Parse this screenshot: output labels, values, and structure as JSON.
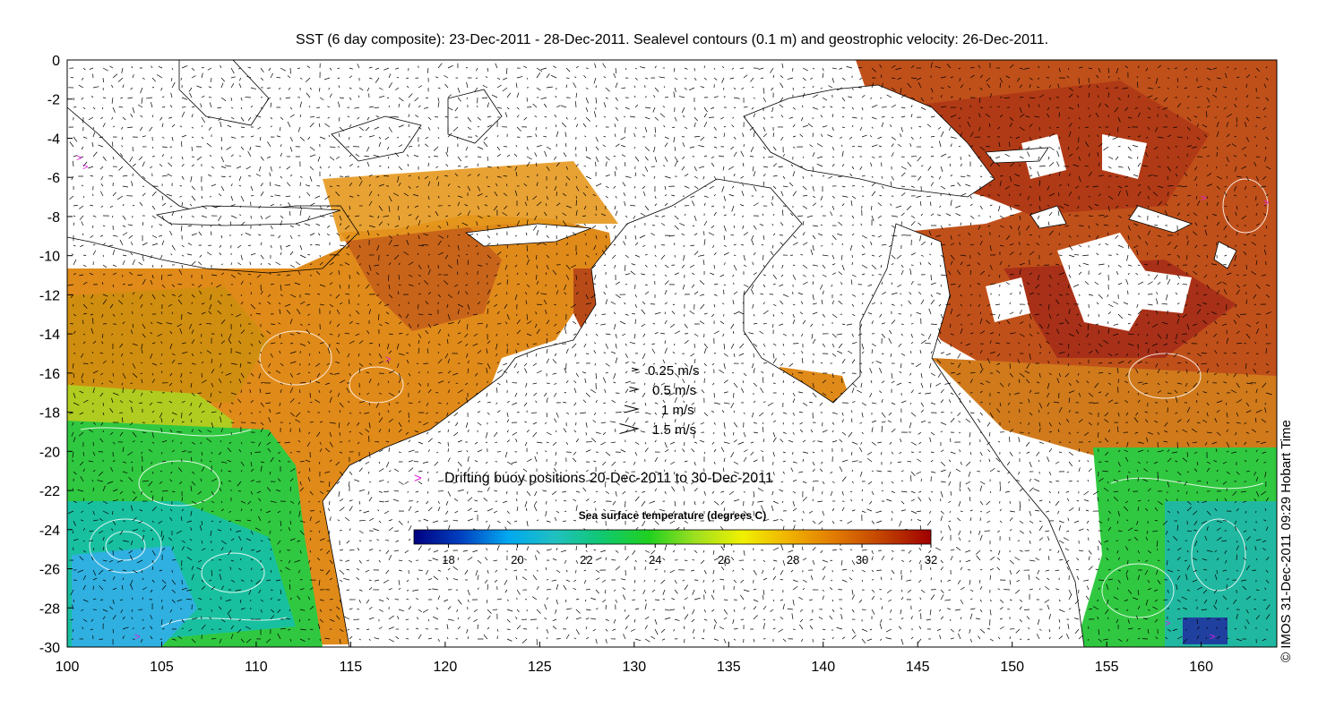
{
  "title": "SST (6 day composite): 23-Dec-2011 - 28-Dec-2011. Sealevel contours (0.1 m) and geostrophic velocity: 26-Dec-2011.",
  "credit": "© IMOS 31-Dec-2011 09:29 Hobart Time",
  "axes": {
    "x_ticks": [
      "100",
      "105",
      "110",
      "115",
      "120",
      "125",
      "130",
      "135",
      "140",
      "145",
      "150",
      "155",
      "160"
    ],
    "y_ticks": [
      "0",
      "-2",
      "-4",
      "-6",
      "-8",
      "-10",
      "-12",
      "-14",
      "-16",
      "-18",
      "-20",
      "-22",
      "-24",
      "-26",
      "-28",
      "-30"
    ],
    "x_range": [
      100,
      164
    ],
    "y_range": [
      -30,
      0
    ]
  },
  "velocity_legend": [
    {
      "label": "0.25 m/s",
      "speed": 0.25
    },
    {
      "label": "0.5 m/s",
      "speed": 0.5
    },
    {
      "label": "1 m/s",
      "speed": 1
    },
    {
      "label": "1.5 m/s",
      "speed": 1.5
    }
  ],
  "buoy_legend": {
    "symbol": ">",
    "label": "Drifting buoy positions 20-Dec-2011 to 30-Dec-2011",
    "color": "#e020e0"
  },
  "colorbar": {
    "title": "Sea surface temperature (degrees C)",
    "ticks": [
      "18",
      "20",
      "22",
      "24",
      "26",
      "28",
      "30",
      "32"
    ],
    "min": 17,
    "max": 32,
    "colors": [
      "#00007f",
      "#0040c0",
      "#00a8f0",
      "#20c0c0",
      "#10c870",
      "#20d020",
      "#a0e020",
      "#f0f000",
      "#f0b000",
      "#e07800",
      "#c04000",
      "#a00000"
    ]
  },
  "palette": {
    "land": "#ffffff",
    "coast": "#000000",
    "arrow": "#000000"
  }
}
